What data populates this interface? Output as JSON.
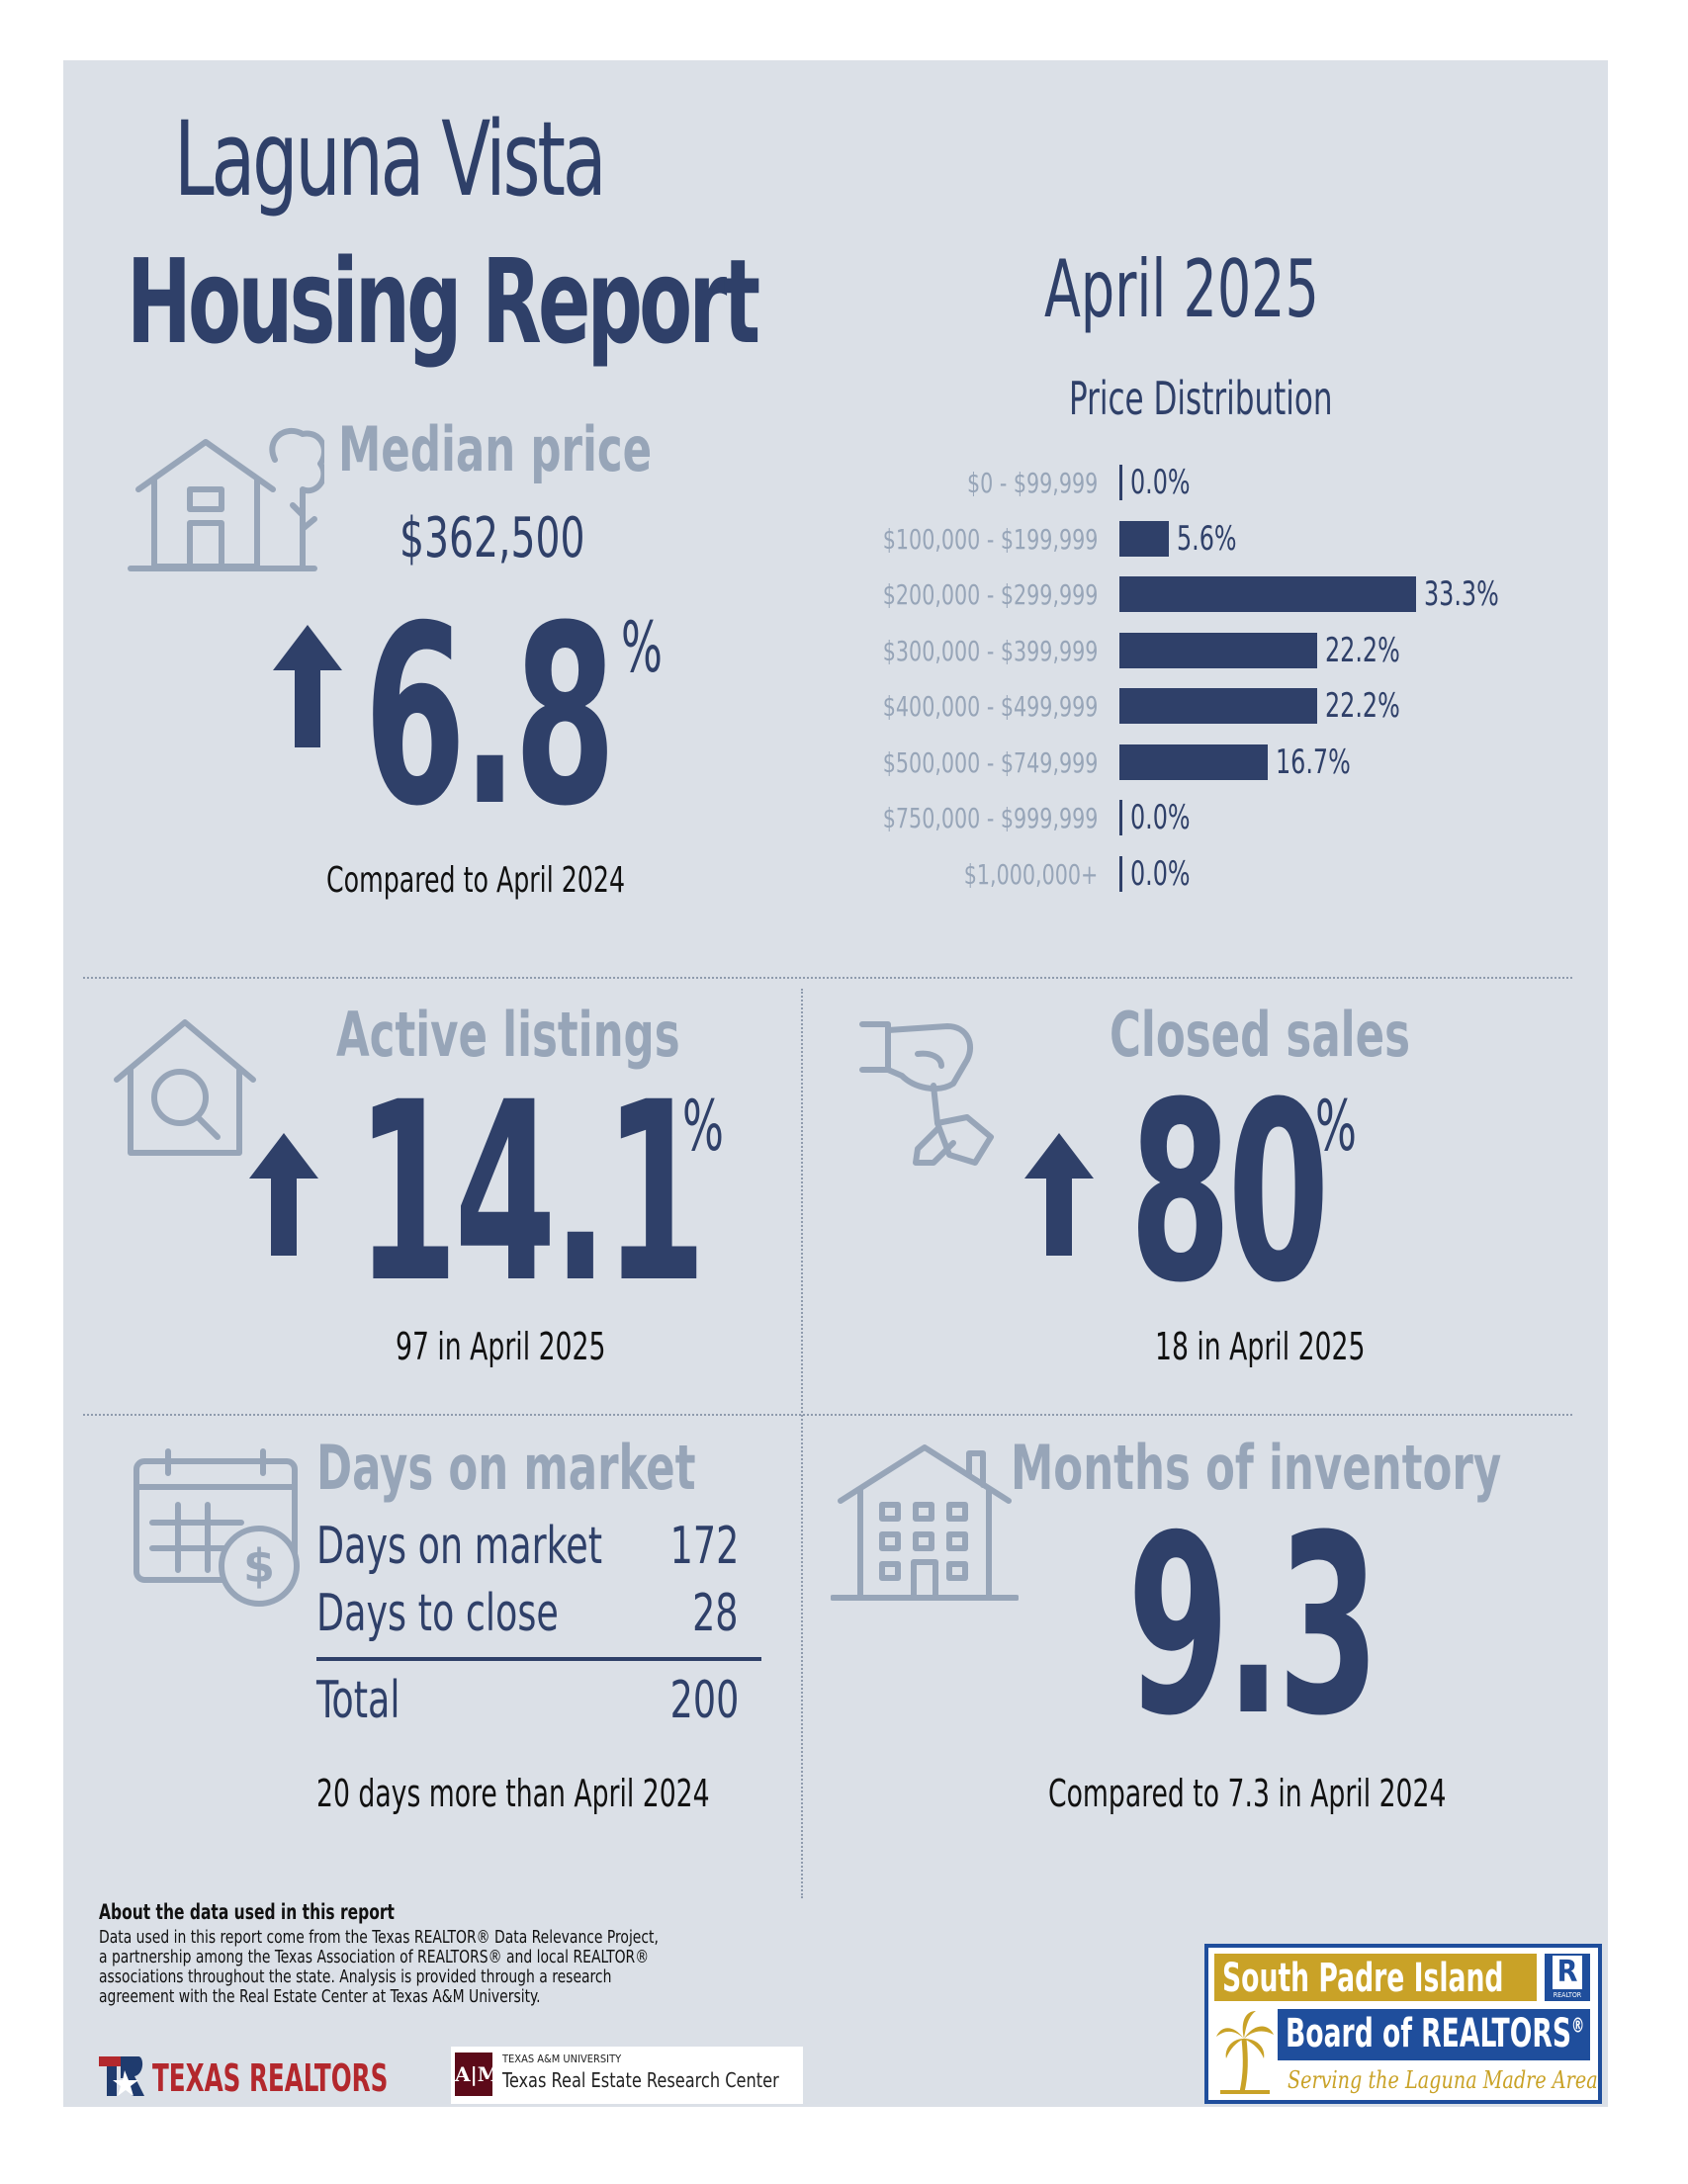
{
  "header": {
    "title_line1": "Laguna Vista",
    "title_line2": "Housing Report",
    "month": "April 2025"
  },
  "median_price": {
    "label": "Median price",
    "value": "$362,500",
    "change": "6.8",
    "unit": "%",
    "direction": "up",
    "comparison": "Compared to April 2024"
  },
  "price_distribution": {
    "title": "Price Distribution",
    "chart_data": {
      "type": "bar",
      "orientation": "horizontal",
      "title": "Price Distribution",
      "categories": [
        "$0 - $99,999",
        "$100,000 - $199,999",
        "$200,000 - $299,999",
        "$300,000 - $399,999",
        "$400,000 - $499,999",
        "$500,000 - $749,999",
        "$750,000 - $999,999",
        "$1,000,000+"
      ],
      "values": [
        0.0,
        5.6,
        33.3,
        22.2,
        22.2,
        16.7,
        0.0,
        0.0
      ],
      "value_labels": [
        "0.0%",
        "5.6%",
        "33.3%",
        "22.2%",
        "22.2%",
        "16.7%",
        "0.0%",
        "0.0%"
      ],
      "xlim": [
        0,
        33.3
      ],
      "color": "#2f4069"
    }
  },
  "active_listings": {
    "label": "Active listings",
    "change": "14.1",
    "unit": "%",
    "direction": "up",
    "note": "97 in April 2025"
  },
  "closed_sales": {
    "label": "Closed sales",
    "change": "80",
    "unit": "%",
    "direction": "up",
    "note": "18 in April 2025"
  },
  "days_on_market": {
    "label": "Days on market",
    "rows": [
      {
        "label": "Days on market",
        "value": "172"
      },
      {
        "label": "Days to close",
        "value": "28"
      }
    ],
    "total_label": "Total",
    "total_value": "200",
    "note": "20 days more than April 2024"
  },
  "months_inventory": {
    "label": "Months of inventory",
    "value": "9.3",
    "note": "Compared to 7.3 in April 2024"
  },
  "about": {
    "heading": "About the data used in this report",
    "body": "Data used in this report come from the Texas REALTOR® Data Relevance Project, a partnership among the Texas Association of REALTORS® and local REALTOR® associations throughout the state. Analysis is provided through a research agreement with the Real Estate Center at Texas A&M University."
  },
  "logos": {
    "texas_realtors": "TEXAS REALTORS",
    "tamu_small": "TEXAS A&M UNIVERSITY",
    "tamu_center": "Texas Real Estate Research Center",
    "spi_line1": "South Padre Island",
    "spi_line2": "Board of REALTORS",
    "spi_reg": "®",
    "spi_tagline": "Serving the Laguna Madre Area",
    "realtor_mark": "R",
    "realtor_small": "REALTOR"
  },
  "colors": {
    "navy": "#2f4069",
    "gray_text": "#97a5b8",
    "panel_bg": "#dbe0e7",
    "spi_gold": "#c9a227",
    "spi_blue": "#1f4e9c"
  }
}
